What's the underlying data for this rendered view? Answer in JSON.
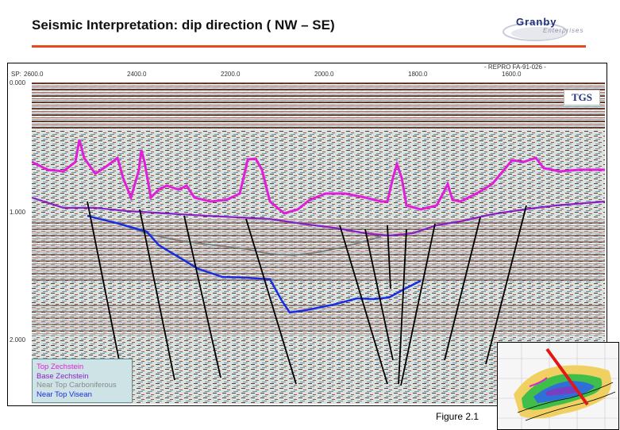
{
  "slide": {
    "title": "Seismic Interpretation: dip direction ( NW – SE)",
    "figure_caption": "Figure 2.1",
    "accent_color": "#e8481c"
  },
  "logo": {
    "text": "Granby",
    "subtext": "Enterprises"
  },
  "section": {
    "repro_label": "- REPRO FA-91-026 -",
    "sp_label": "SP:",
    "sp_ticks": [
      "2600.0",
      "2400.0",
      "2200.0",
      "2000.0",
      "1800.0",
      "1600.0"
    ],
    "time_ticks": [
      "0.000",
      "1.000",
      "2.000"
    ],
    "badge": "TGS"
  },
  "legend": {
    "items": [
      {
        "label": "Top Zechstein",
        "color": "#e020d8"
      },
      {
        "label": "Base Zechstein",
        "color": "#8a1fc6"
      },
      {
        "label": "Near Top Carboniferous",
        "color": "#8a8a8a"
      },
      {
        "label": "Near Top Visean",
        "color": "#1a2ee0"
      }
    ]
  },
  "inset": {
    "highlight_color": "#e01818"
  }
}
